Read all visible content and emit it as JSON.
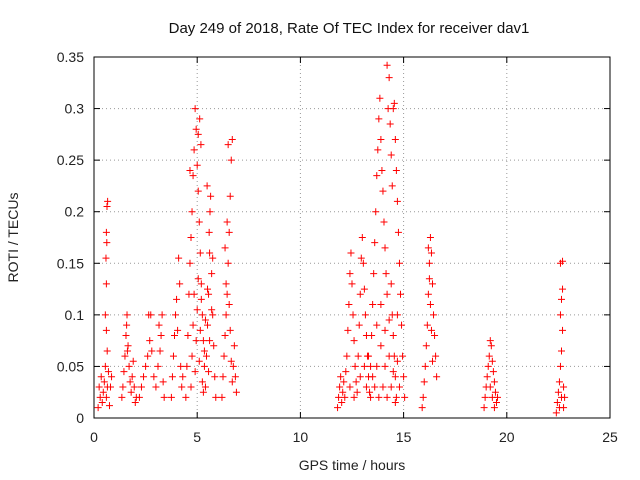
{
  "chart_data": {
    "type": "scatter",
    "title": "Day 249 of 2018, Rate Of TEC Index for receiver dav1",
    "xlabel": "GPS time / hours",
    "ylabel": "ROTI / TECUs",
    "xlim": [
      0,
      25
    ],
    "ylim": [
      0,
      0.35
    ],
    "xticks": [
      0,
      5,
      10,
      15,
      20,
      25
    ],
    "xtick_labels": [
      "0",
      "5",
      "10",
      "15",
      "20",
      "25"
    ],
    "yticks": [
      0,
      0.05,
      0.1,
      0.15,
      0.2,
      0.25,
      0.3,
      0.35
    ],
    "ytick_labels": [
      "0",
      "0.05",
      "0.1",
      "0.15",
      "0.2",
      "0.25",
      "0.3",
      "0.35"
    ],
    "grid": true,
    "marker": "+",
    "marker_color": "#ff0000",
    "series": [
      {
        "points": [
          [
            0.2,
            0.01
          ],
          [
            0.25,
            0.03
          ],
          [
            0.3,
            0.02
          ],
          [
            0.35,
            0.04
          ],
          [
            0.4,
            0.015
          ],
          [
            0.45,
            0.025
          ],
          [
            0.5,
            0.035
          ],
          [
            0.55,
            0.05
          ],
          [
            0.6,
            0.02
          ],
          [
            0.65,
            0.03
          ],
          [
            0.7,
            0.045
          ],
          [
            0.75,
            0.012
          ],
          [
            0.8,
            0.03
          ],
          [
            0.85,
            0.04
          ],
          [
            0.55,
            0.1
          ],
          [
            0.6,
            0.13
          ],
          [
            0.58,
            0.155
          ],
          [
            0.62,
            0.17
          ],
          [
            0.6,
            0.18
          ],
          [
            0.63,
            0.205
          ],
          [
            0.66,
            0.21
          ],
          [
            0.6,
            0.085
          ],
          [
            0.64,
            0.065
          ],
          [
            1.35,
            0.02
          ],
          [
            1.4,
            0.03
          ],
          [
            1.45,
            0.045
          ],
          [
            1.5,
            0.06
          ],
          [
            1.55,
            0.08
          ],
          [
            1.6,
            0.1
          ],
          [
            1.65,
            0.07
          ],
          [
            1.7,
            0.05
          ],
          [
            1.75,
            0.035
          ],
          [
            1.8,
            0.025
          ],
          [
            1.85,
            0.04
          ],
          [
            1.9,
            0.055
          ],
          [
            1.95,
            0.03
          ],
          [
            2.0,
            0.015
          ],
          [
            2.05,
            0.02
          ],
          [
            1.58,
            0.09
          ],
          [
            1.62,
            0.065
          ],
          [
            2.2,
            0.02
          ],
          [
            2.3,
            0.03
          ],
          [
            2.4,
            0.04
          ],
          [
            2.5,
            0.05
          ],
          [
            2.6,
            0.06
          ],
          [
            2.7,
            0.075
          ],
          [
            2.75,
            0.1
          ],
          [
            2.8,
            0.065
          ],
          [
            2.9,
            0.04
          ],
          [
            3.0,
            0.03
          ],
          [
            3.1,
            0.05
          ],
          [
            3.2,
            0.065
          ],
          [
            3.25,
            0.08
          ],
          [
            3.3,
            0.1
          ],
          [
            3.35,
            0.035
          ],
          [
            3.4,
            0.02
          ],
          [
            2.65,
            0.1
          ],
          [
            3.15,
            0.09
          ],
          [
            3.75,
            0.02
          ],
          [
            3.8,
            0.04
          ],
          [
            3.85,
            0.06
          ],
          [
            3.9,
            0.08
          ],
          [
            3.95,
            0.1
          ],
          [
            4.0,
            0.115
          ],
          [
            4.05,
            0.085
          ],
          [
            4.1,
            0.155
          ],
          [
            4.15,
            0.13
          ],
          [
            4.2,
            0.05
          ],
          [
            4.25,
            0.03
          ],
          [
            4.3,
            0.04
          ],
          [
            4.45,
            0.02
          ],
          [
            4.5,
            0.05
          ],
          [
            4.55,
            0.08
          ],
          [
            4.6,
            0.12
          ],
          [
            4.65,
            0.15
          ],
          [
            4.7,
            0.175
          ],
          [
            4.75,
            0.2
          ],
          [
            4.8,
            0.235
          ],
          [
            4.85,
            0.26
          ],
          [
            4.9,
            0.3
          ],
          [
            4.95,
            0.28
          ],
          [
            5.0,
            0.245
          ],
          [
            5.05,
            0.22
          ],
          [
            5.1,
            0.19
          ],
          [
            5.15,
            0.16
          ],
          [
            5.2,
            0.13
          ],
          [
            5.25,
            0.1
          ],
          [
            5.3,
            0.075
          ],
          [
            5.35,
            0.05
          ],
          [
            5.4,
            0.03
          ],
          [
            5.45,
            0.06
          ],
          [
            5.5,
            0.09
          ],
          [
            5.55,
            0.12
          ],
          [
            5.6,
            0.16
          ],
          [
            5.65,
            0.215
          ],
          [
            5.7,
            0.14
          ],
          [
            5.75,
            0.1
          ],
          [
            5.8,
            0.07
          ],
          [
            5.85,
            0.04
          ],
          [
            5.9,
            0.02
          ],
          [
            4.7,
            0.03
          ],
          [
            4.75,
            0.06
          ],
          [
            4.8,
            0.09
          ],
          [
            4.85,
            0.12
          ],
          [
            4.9,
            0.045
          ],
          [
            4.95,
            0.075
          ],
          [
            5.0,
            0.105
          ],
          [
            5.05,
            0.135
          ],
          [
            5.1,
            0.055
          ],
          [
            5.15,
            0.085
          ],
          [
            5.2,
            0.115
          ],
          [
            5.25,
            0.035
          ],
          [
            5.3,
            0.025
          ],
          [
            5.35,
            0.065
          ],
          [
            5.4,
            0.095
          ],
          [
            5.5,
            0.125
          ],
          [
            5.55,
            0.045
          ],
          [
            5.6,
            0.075
          ],
          [
            5.7,
            0.105
          ],
          [
            5.75,
            0.155
          ],
          [
            4.65,
            0.24
          ],
          [
            5.05,
            0.275
          ],
          [
            5.12,
            0.29
          ],
          [
            5.18,
            0.265
          ],
          [
            5.48,
            0.225
          ],
          [
            5.58,
            0.18
          ],
          [
            5.62,
            0.2
          ],
          [
            6.2,
            0.02
          ],
          [
            6.25,
            0.04
          ],
          [
            6.3,
            0.06
          ],
          [
            6.35,
            0.08
          ],
          [
            6.4,
            0.1
          ],
          [
            6.45,
            0.12
          ],
          [
            6.5,
            0.15
          ],
          [
            6.55,
            0.18
          ],
          [
            6.6,
            0.215
          ],
          [
            6.65,
            0.25
          ],
          [
            6.7,
            0.27
          ],
          [
            6.5,
            0.265
          ],
          [
            6.45,
            0.19
          ],
          [
            6.55,
            0.11
          ],
          [
            6.6,
            0.085
          ],
          [
            6.65,
            0.055
          ],
          [
            6.7,
            0.035
          ],
          [
            6.75,
            0.05
          ],
          [
            6.8,
            0.07
          ],
          [
            6.85,
            0.04
          ],
          [
            6.9,
            0.025
          ],
          [
            6.4,
            0.13
          ],
          [
            6.35,
            0.165
          ],
          [
            11.8,
            0.01
          ],
          [
            11.85,
            0.02
          ],
          [
            11.9,
            0.03
          ],
          [
            11.95,
            0.04
          ],
          [
            12.0,
            0.015
          ],
          [
            12.05,
            0.025
          ],
          [
            12.1,
            0.035
          ],
          [
            12.15,
            0.02
          ],
          [
            12.2,
            0.045
          ],
          [
            12.25,
            0.06
          ],
          [
            12.3,
            0.085
          ],
          [
            12.35,
            0.11
          ],
          [
            12.4,
            0.14
          ],
          [
            12.45,
            0.16
          ],
          [
            12.5,
            0.13
          ],
          [
            12.55,
            0.1
          ],
          [
            12.6,
            0.075
          ],
          [
            12.65,
            0.05
          ],
          [
            12.7,
            0.035
          ],
          [
            12.75,
            0.025
          ],
          [
            12.8,
            0.06
          ],
          [
            12.85,
            0.09
          ],
          [
            12.9,
            0.12
          ],
          [
            12.95,
            0.155
          ],
          [
            13.0,
            0.175
          ],
          [
            13.05,
            0.15
          ],
          [
            13.1,
            0.125
          ],
          [
            13.15,
            0.1
          ],
          [
            13.2,
            0.08
          ],
          [
            13.25,
            0.06
          ],
          [
            13.3,
            0.04
          ],
          [
            13.35,
            0.025
          ],
          [
            13.4,
            0.05
          ],
          [
            13.45,
            0.08
          ],
          [
            13.5,
            0.11
          ],
          [
            13.55,
            0.14
          ],
          [
            13.6,
            0.17
          ],
          [
            13.65,
            0.2
          ],
          [
            13.7,
            0.235
          ],
          [
            13.75,
            0.26
          ],
          [
            13.8,
            0.29
          ],
          [
            13.85,
            0.31
          ],
          [
            13.9,
            0.27
          ],
          [
            13.95,
            0.24
          ],
          [
            14.0,
            0.22
          ],
          [
            14.05,
            0.19
          ],
          [
            14.1,
            0.165
          ],
          [
            14.15,
            0.14
          ],
          [
            14.2,
            0.12
          ],
          [
            14.25,
            0.3
          ],
          [
            14.3,
            0.33
          ],
          [
            14.2,
            0.342
          ],
          [
            14.35,
            0.285
          ],
          [
            14.4,
            0.255
          ],
          [
            14.45,
            0.225
          ],
          [
            14.5,
            0.3
          ],
          [
            14.55,
            0.305
          ],
          [
            14.6,
            0.27
          ],
          [
            14.65,
            0.24
          ],
          [
            14.7,
            0.21
          ],
          [
            14.75,
            0.18
          ],
          [
            14.8,
            0.15
          ],
          [
            14.85,
            0.12
          ],
          [
            14.9,
            0.09
          ],
          [
            14.95,
            0.06
          ],
          [
            15.0,
            0.04
          ],
          [
            15.05,
            0.02
          ],
          [
            14.45,
            0.1
          ],
          [
            14.5,
            0.08
          ],
          [
            14.55,
            0.06
          ],
          [
            14.6,
            0.04
          ],
          [
            14.65,
            0.02
          ],
          [
            13.2,
            0.03
          ],
          [
            13.4,
            0.02
          ],
          [
            13.6,
            0.03
          ],
          [
            13.8,
            0.02
          ],
          [
            14.0,
            0.03
          ],
          [
            14.2,
            0.02
          ],
          [
            14.4,
            0.03
          ],
          [
            14.6,
            0.015
          ],
          [
            14.8,
            0.03
          ],
          [
            13.1,
            0.05
          ],
          [
            13.3,
            0.06
          ],
          [
            13.5,
            0.04
          ],
          [
            13.7,
            0.05
          ],
          [
            13.9,
            0.07
          ],
          [
            14.1,
            0.05
          ],
          [
            14.3,
            0.06
          ],
          [
            14.5,
            0.045
          ],
          [
            14.7,
            0.055
          ],
          [
            12.4,
            0.03
          ],
          [
            12.6,
            0.02
          ],
          [
            12.9,
            0.04
          ],
          [
            13.7,
            0.09
          ],
          [
            13.9,
            0.11
          ],
          [
            14.1,
            0.085
          ],
          [
            14.3,
            0.095
          ],
          [
            14.4,
            0.13
          ],
          [
            14.7,
            0.1
          ],
          [
            15.9,
            0.01
          ],
          [
            15.95,
            0.02
          ],
          [
            16.0,
            0.035
          ],
          [
            16.05,
            0.05
          ],
          [
            16.1,
            0.07
          ],
          [
            16.15,
            0.09
          ],
          [
            16.2,
            0.12
          ],
          [
            16.25,
            0.15
          ],
          [
            16.3,
            0.175
          ],
          [
            16.35,
            0.16
          ],
          [
            16.4,
            0.13
          ],
          [
            16.45,
            0.1
          ],
          [
            16.5,
            0.08
          ],
          [
            16.55,
            0.06
          ],
          [
            16.6,
            0.04
          ],
          [
            16.2,
            0.165
          ],
          [
            16.25,
            0.135
          ],
          [
            16.3,
            0.11
          ],
          [
            16.35,
            0.085
          ],
          [
            16.4,
            0.055
          ],
          [
            18.9,
            0.01
          ],
          [
            18.95,
            0.02
          ],
          [
            19.0,
            0.03
          ],
          [
            19.05,
            0.04
          ],
          [
            19.1,
            0.05
          ],
          [
            19.15,
            0.06
          ],
          [
            19.2,
            0.075
          ],
          [
            19.25,
            0.07
          ],
          [
            19.3,
            0.055
          ],
          [
            19.35,
            0.045
          ],
          [
            19.4,
            0.035
          ],
          [
            19.45,
            0.025
          ],
          [
            19.5,
            0.015
          ],
          [
            19.55,
            0.02
          ],
          [
            19.2,
            0.03
          ],
          [
            19.3,
            0.02
          ],
          [
            19.4,
            0.01
          ],
          [
            22.4,
            0.005
          ],
          [
            22.45,
            0.015
          ],
          [
            22.5,
            0.025
          ],
          [
            22.55,
            0.035
          ],
          [
            22.6,
            0.05
          ],
          [
            22.65,
            0.065
          ],
          [
            22.7,
            0.085
          ],
          [
            22.6,
            0.1
          ],
          [
            22.65,
            0.115
          ],
          [
            22.7,
            0.125
          ],
          [
            22.6,
            0.15
          ],
          [
            22.7,
            0.152
          ],
          [
            22.75,
            0.03
          ],
          [
            22.8,
            0.02
          ],
          [
            22.55,
            0.01
          ],
          [
            22.65,
            0.02
          ],
          [
            22.75,
            0.01
          ]
        ]
      }
    ]
  }
}
